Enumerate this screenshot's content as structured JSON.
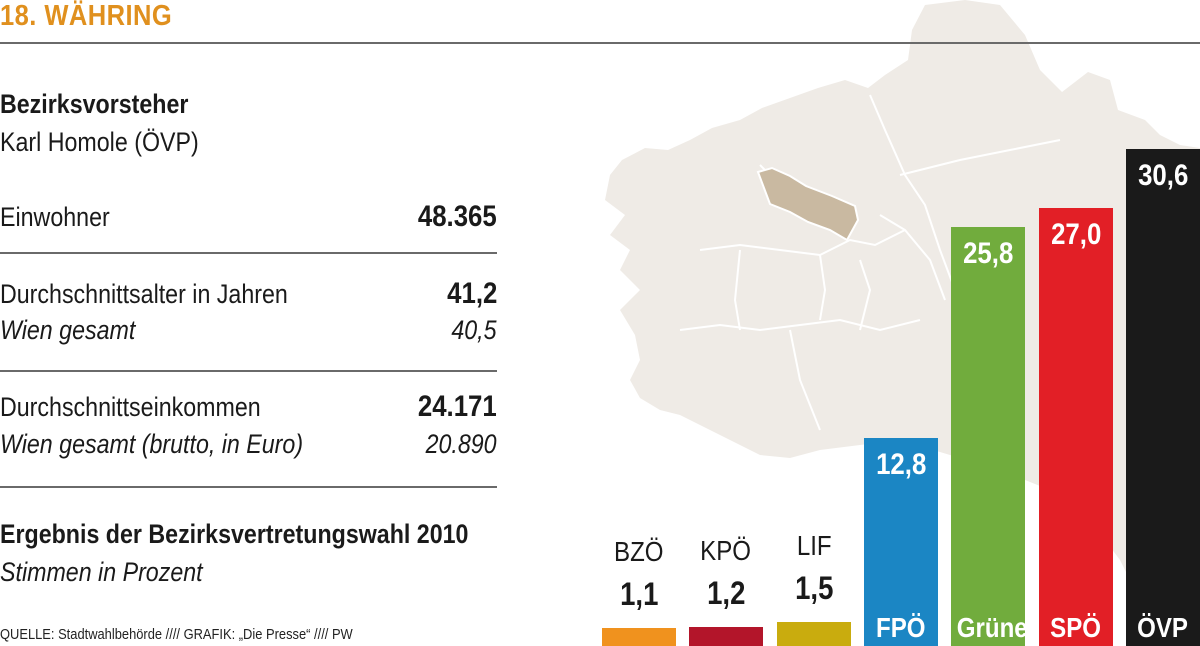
{
  "header": {
    "title": "18. WÄHRING"
  },
  "info": {
    "bv_heading": "Bezirksvorsteher",
    "bv_name": "Karl Homole (ÖVP)",
    "einwohner_label": "Einwohner",
    "einwohner_value": "48.365",
    "alter_label": "Durchschnittsalter in Jahren",
    "alter_value": "41,2",
    "alter_wien_label": "Wien gesamt",
    "alter_wien_value": "40,5",
    "einkommen_label": "Durchschnittseinkommen",
    "einkommen_value": "24.171",
    "einkommen_wien_label": "Wien gesamt (brutto, in Euro)",
    "einkommen_wien_value": "20.890",
    "ergebnis_title": "Ergebnis der Bezirksvertretungswahl 2010",
    "ergebnis_subtitle": "Stimmen in Prozent"
  },
  "source": "QUELLE: Stadtwahlbehörde  ////  GRAFIK: „Die Presse“  ////  PW",
  "colors": {
    "title": "#e0901e",
    "map": "#efebe6",
    "highlight": "#c9b9a1"
  },
  "chart_data": {
    "type": "bar",
    "categories": [
      "BZÖ",
      "KPÖ",
      "LIF",
      "FPÖ",
      "Grüne",
      "SPÖ",
      "ÖVP"
    ],
    "values": [
      1.1,
      1.2,
      1.5,
      12.8,
      25.8,
      27.0,
      30.6
    ],
    "value_labels": [
      "1,1",
      "1,2",
      "1,5",
      "12,8",
      "25,8",
      "27,0",
      "30,6"
    ],
    "colors": [
      "#f0921e",
      "#b3152a",
      "#c9ac0e",
      "#1b86c4",
      "#71ac3d",
      "#e21f26",
      "#1a1a1a"
    ],
    "title": "Ergebnis der Bezirksvertretungswahl 2010",
    "subtitle": "Stimmen in Prozent"
  }
}
